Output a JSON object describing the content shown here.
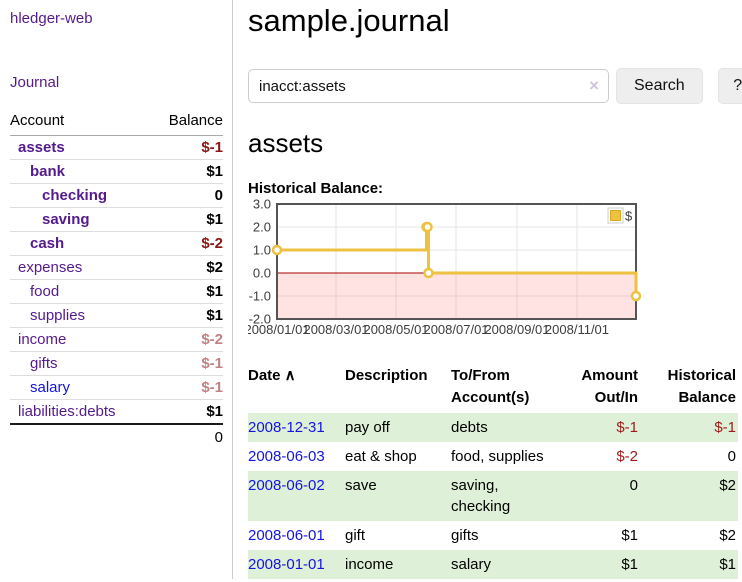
{
  "brand": "hledger-web",
  "nav": {
    "journal": "Journal"
  },
  "sidebar": {
    "header": {
      "account": "Account",
      "balance": "Balance"
    },
    "accounts": [
      {
        "name": "assets",
        "balance": "$-1",
        "depth": 0,
        "bold": true,
        "balance_color": "neg-strong",
        "link_style": "purple"
      },
      {
        "name": "bank",
        "balance": "$1",
        "depth": 1,
        "bold": true,
        "balance_color": "",
        "link_style": "purple"
      },
      {
        "name": "checking",
        "balance": "0",
        "depth": 2,
        "bold": true,
        "balance_color": "",
        "link_style": "purple"
      },
      {
        "name": "saving",
        "balance": "$1",
        "depth": 2,
        "bold": true,
        "balance_color": "",
        "link_style": "purple"
      },
      {
        "name": "cash",
        "balance": "$-2",
        "depth": 1,
        "bold": true,
        "balance_color": "neg-strong",
        "link_style": "purple"
      },
      {
        "name": "expenses",
        "balance": "$2",
        "depth": 0,
        "bold": false,
        "balance_color": "",
        "link_style": "purple"
      },
      {
        "name": "food",
        "balance": "$1",
        "depth": 1,
        "bold": false,
        "balance_color": "",
        "link_style": "purple"
      },
      {
        "name": "supplies",
        "balance": "$1",
        "depth": 1,
        "bold": false,
        "balance_color": "",
        "link_style": "purple"
      },
      {
        "name": "income",
        "balance": "$-2",
        "depth": 0,
        "bold": false,
        "balance_color": "neg-light",
        "link_style": "purple"
      },
      {
        "name": "gifts",
        "balance": "$-1",
        "depth": 1,
        "bold": false,
        "balance_color": "neg-light",
        "link_style": "purple"
      },
      {
        "name": "salary",
        "balance": "$-1",
        "depth": 1,
        "bold": false,
        "balance_color": "neg-light",
        "link_style": "blue"
      },
      {
        "name": "liabilities:debts",
        "balance": "$1",
        "depth": 0,
        "bold": false,
        "balance_color": "",
        "link_style": "purple"
      }
    ],
    "total": "0"
  },
  "page": {
    "title": "sample.journal"
  },
  "search": {
    "value": "inacct:assets",
    "clear_label": "×",
    "submit_label": "Search",
    "help_label": "?"
  },
  "account_view": {
    "heading": "assets",
    "chart_title": "Historical Balance:"
  },
  "chart_data": {
    "type": "line",
    "step": true,
    "title": "Historical Balance",
    "x_start": "2008-01-01",
    "x_end": "2008-12-31",
    "ylim": [
      -2,
      3
    ],
    "y_ticks": [
      "3.0",
      "2.0",
      "1.0",
      "0.0",
      "-1.0",
      "-2.0"
    ],
    "x_ticks": [
      {
        "date": "2008-01-01",
        "label": "2008/01/01"
      },
      {
        "date": "2008-03-01",
        "label": "2008/03/01"
      },
      {
        "date": "2008-05-01",
        "label": "2008/05/01"
      },
      {
        "date": "2008-07-01",
        "label": "2008/07/01"
      },
      {
        "date": "2008-09-01",
        "label": "2008/09/01"
      },
      {
        "date": "2008-11-01",
        "label": "2008/11/01"
      }
    ],
    "series": [
      {
        "name": "$",
        "color": "#edc240",
        "points": [
          {
            "date": "2008-01-01",
            "value": 1
          },
          {
            "date": "2008-06-01",
            "value": 2
          },
          {
            "date": "2008-06-02",
            "value": 2
          },
          {
            "date": "2008-06-03",
            "value": 0
          },
          {
            "date": "2008-12-31",
            "value": -1
          }
        ]
      }
    ],
    "legend_position": "top-right",
    "grid": true,
    "zero_line_color": "#a40000",
    "negative_region_fill": "rgba(255,80,80,0.16)",
    "border_color": "#545454",
    "grid_color": "#e6e6e6",
    "tick_label_color": "#3c3c3c"
  },
  "register": {
    "sort_icon": "∧",
    "columns": [
      {
        "label": "Date",
        "align": "left",
        "sorted": true
      },
      {
        "label": "Description",
        "align": "left",
        "sorted": false
      },
      {
        "label": "To/From Account(s)",
        "align": "left",
        "sorted": false
      },
      {
        "label": "Amount Out/In",
        "align": "right",
        "sorted": false
      },
      {
        "label": "Historical Balance",
        "align": "right",
        "sorted": false
      }
    ],
    "rows": [
      {
        "date": "2008-12-31",
        "description": "pay off",
        "accounts": "debts",
        "amount": "$-1",
        "amount_neg": true,
        "balance": "$-1",
        "balance_neg": true,
        "shaded": true
      },
      {
        "date": "2008-06-03",
        "description": "eat & shop",
        "accounts": "food, supplies",
        "amount": "$-2",
        "amount_neg": true,
        "balance": "0",
        "balance_neg": false,
        "shaded": false
      },
      {
        "date": "2008-06-02",
        "description": "save",
        "accounts": "saving, checking",
        "amount": "0",
        "amount_neg": false,
        "balance": "$2",
        "balance_neg": false,
        "shaded": true
      },
      {
        "date": "2008-06-01",
        "description": "gift",
        "accounts": "gifts",
        "amount": "$1",
        "amount_neg": false,
        "balance": "$2",
        "balance_neg": false,
        "shaded": false
      },
      {
        "date": "2008-01-01",
        "description": "income",
        "accounts": "salary",
        "amount": "$1",
        "amount_neg": false,
        "balance": "$1",
        "balance_neg": false,
        "shaded": true
      }
    ]
  },
  "colors": {
    "link_purple": "#551a8b",
    "link_blue": "#1414e0",
    "negative_strong": "#8b1414",
    "negative_light": "#c28282",
    "negative_table": "#9e1b1b",
    "row_shade_green": "#dff0d8",
    "chart_series": "#edc240"
  }
}
